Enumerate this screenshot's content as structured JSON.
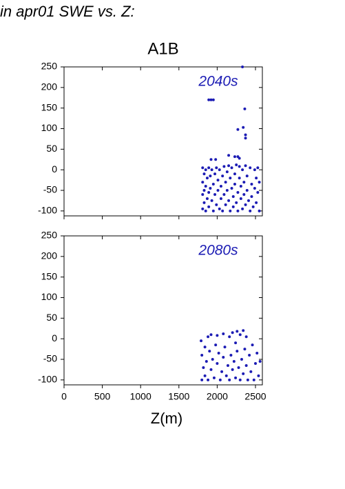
{
  "header": {
    "title": "in apr01 SWE vs. Z:"
  },
  "chart_data": [
    {
      "type": "scatter",
      "title": "A1B",
      "annotation": "2040s",
      "color": "#1c1cb4",
      "xlim": [
        0,
        2590
      ],
      "ylim": [
        -112,
        250
      ],
      "xticks": [
        0,
        500,
        1000,
        1500,
        2000,
        2500
      ],
      "yticks": [
        250,
        200,
        150,
        100,
        50,
        0,
        -50,
        -100
      ],
      "x": [
        1890,
        1920,
        1950,
        2330,
        2360,
        2340,
        2270,
        2370,
        2370,
        1920,
        1980,
        2150,
        2230,
        2270,
        2290,
        1810,
        1810,
        1810,
        1810,
        1830,
        1830,
        1830,
        1850,
        1850,
        1850,
        1870,
        1870,
        1890,
        1890,
        1890,
        1910,
        1910,
        1930,
        1930,
        1950,
        1950,
        1970,
        1970,
        1990,
        1990,
        2010,
        2010,
        2030,
        2030,
        2050,
        2050,
        2070,
        2070,
        2090,
        2090,
        2110,
        2110,
        2130,
        2130,
        2150,
        2150,
        2170,
        2170,
        2190,
        2190,
        2210,
        2210,
        2230,
        2230,
        2250,
        2250,
        2270,
        2270,
        2290,
        2290,
        2310,
        2310,
        2330,
        2330,
        2350,
        2350,
        2370,
        2370,
        2390,
        2390,
        2410,
        2430,
        2430,
        2450,
        2450,
        2470,
        2490,
        2490,
        2510,
        2510,
        2530,
        2530,
        2550,
        2550
      ],
      "y": [
        170,
        170,
        170,
        250,
        148,
        103,
        98,
        85,
        77,
        25,
        25,
        35,
        32,
        32,
        28,
        5,
        -30,
        -60,
        -95,
        -10,
        -50,
        -80,
        0,
        -40,
        -100,
        -20,
        -70,
        5,
        -55,
        -90,
        -15,
        -45,
        -75,
        0,
        -35,
        -100,
        -10,
        -60,
        5,
        -85,
        -25,
        -50,
        -95,
        0,
        -40,
        -70,
        -15,
        -100,
        8,
        -60,
        -30,
        -85,
        -5,
        -50,
        10,
        -75,
        -20,
        -100,
        -45,
        5,
        -65,
        -90,
        -10,
        -35,
        12,
        -80,
        -55,
        -100,
        -20,
        8,
        -70,
        -40,
        0,
        -95,
        -30,
        -60,
        10,
        -85,
        -50,
        -15,
        -75,
        5,
        -100,
        -35,
        -65,
        -90,
        0,
        -45,
        -20,
        -80,
        -55,
        5,
        -100,
        -30
      ]
    },
    {
      "type": "scatter",
      "annotation": "2080s",
      "color": "#1c1cb4",
      "xlabel": "Z(m)",
      "xlim": [
        0,
        2590
      ],
      "ylim": [
        -112,
        250
      ],
      "xticks": [
        0,
        500,
        1000,
        1500,
        2000,
        2500
      ],
      "yticks": [
        250,
        200,
        150,
        100,
        50,
        0,
        -50,
        -100
      ],
      "x": [
        1790,
        1800,
        1800,
        1820,
        1840,
        1840,
        1860,
        1880,
        1880,
        1900,
        1920,
        1920,
        1940,
        1960,
        1980,
        2000,
        2000,
        2020,
        2040,
        2060,
        2080,
        2080,
        2100,
        2120,
        2140,
        2160,
        2160,
        2180,
        2200,
        2200,
        2220,
        2240,
        2240,
        2260,
        2260,
        2280,
        2300,
        2300,
        2320,
        2340,
        2340,
        2360,
        2380,
        2380,
        2400,
        2420,
        2440,
        2460,
        2480,
        2500,
        2520,
        2540,
        2560
      ],
      "y": [
        -5,
        -40,
        -100,
        -70,
        -20,
        -90,
        -55,
        5,
        -100,
        -30,
        10,
        -75,
        -50,
        -95,
        -15,
        8,
        -60,
        -35,
        -100,
        -80,
        12,
        -45,
        -20,
        -90,
        -65,
        5,
        -100,
        -40,
        15,
        -75,
        -55,
        -10,
        -95,
        18,
        -30,
        -70,
        10,
        -100,
        -50,
        20,
        -85,
        -25,
        5,
        -65,
        -100,
        -40,
        -80,
        -15,
        -100,
        -60,
        -35,
        -90,
        -55
      ]
    }
  ]
}
